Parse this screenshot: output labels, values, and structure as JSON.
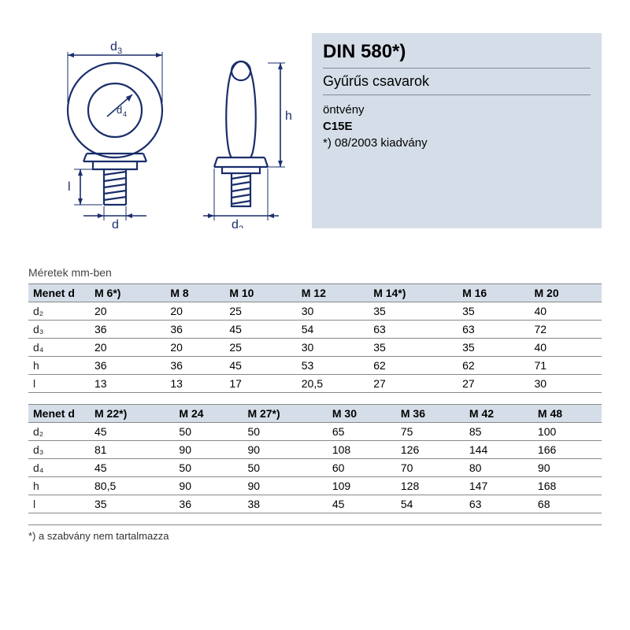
{
  "info": {
    "title": "DIN 580*)",
    "subtitle": "Gyűrűs csavarok",
    "line1": "öntvény",
    "line2": "C15E",
    "line3": "*) 08/2003 kiadvány"
  },
  "diagram": {
    "stroke": "#1a2e6b",
    "stroke_width": 2,
    "labels": {
      "d3": "d₃",
      "d4": "d₄",
      "h": "h",
      "l": "l",
      "d": "d",
      "d2": "d₂"
    }
  },
  "units_label": "Méretek mm-ben",
  "table1": {
    "row_header": "Menet d",
    "columns": [
      "M 6*)",
      "M 8",
      "M 10",
      "M 12",
      "M 14*)",
      "M 16",
      "M 20"
    ],
    "row_labels": [
      "d₂",
      "d₃",
      "d₄",
      "h",
      "l"
    ],
    "rows": [
      [
        "20",
        "20",
        "25",
        "30",
        "35",
        "35",
        "40"
      ],
      [
        "36",
        "36",
        "45",
        "54",
        "63",
        "63",
        "72"
      ],
      [
        "20",
        "20",
        "25",
        "30",
        "35",
        "35",
        "40"
      ],
      [
        "36",
        "36",
        "45",
        "53",
        "62",
        "62",
        "71"
      ],
      [
        "13",
        "13",
        "17",
        "20,5",
        "27",
        "27",
        "30"
      ]
    ]
  },
  "table2": {
    "row_header": "Menet d",
    "columns": [
      "M 22*)",
      "M 24",
      "M 27*)",
      "M 30",
      "M 36",
      "M 42",
      "M 48"
    ],
    "row_labels": [
      "d₂",
      "d₃",
      "d₄",
      "h",
      "l"
    ],
    "rows": [
      [
        "45",
        "50",
        "50",
        "65",
        "75",
        "85",
        "100"
      ],
      [
        "81",
        "90",
        "90",
        "108",
        "126",
        "144",
        "166"
      ],
      [
        "45",
        "50",
        "50",
        "60",
        "70",
        "80",
        "90"
      ],
      [
        "80,5",
        "90",
        "90",
        "109",
        "128",
        "147",
        "168"
      ],
      [
        "35",
        "36",
        "38",
        "45",
        "54",
        "63",
        "68"
      ]
    ]
  },
  "footnote": "*) a szabvány nem tartalmazza",
  "colors": {
    "header_bg": "#d5dee8",
    "border": "#888888",
    "text": "#000000"
  }
}
